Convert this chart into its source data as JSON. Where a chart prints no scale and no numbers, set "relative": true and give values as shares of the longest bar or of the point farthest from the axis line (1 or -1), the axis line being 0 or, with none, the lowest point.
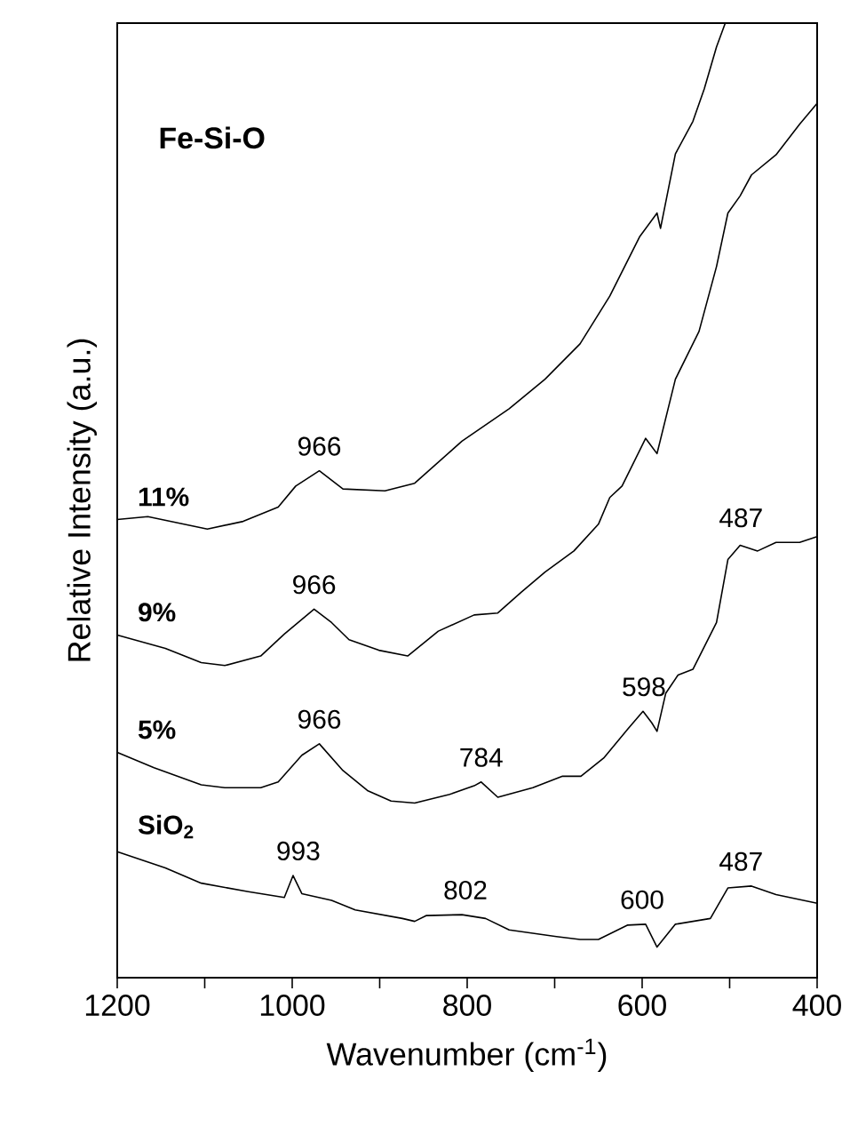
{
  "chart_data": {
    "type": "line",
    "title": "Fe-Si-O",
    "xlabel": "Wavenumber (cm$^{-1}$)",
    "ylabel": "Relative Intensity (a.u.)",
    "relative": true,
    "legend": false,
    "tick_labels": "x",
    "xlim": [
      1200,
      400
    ],
    "xticks": [
      1200,
      {
        "value": 1100,
        "label": null
      },
      1000,
      {
        "value": 900,
        "label": null
      },
      800,
      {
        "value": 700,
        "label": null
      },
      600,
      {
        "value": 500,
        "label": null
      },
      400
    ],
    "series": [
      {
        "name": "11%",
        "color": "#000000",
        "x": [
          1200,
          1165,
          1097,
          1056,
          1016,
          996,
          969,
          942,
          894,
          860,
          806,
          752,
          711,
          671,
          637,
          603,
          583,
          579,
          562,
          542,
          529,
          515,
          505
        ],
        "values": [
          0.48,
          0.483,
          0.47,
          0.478,
          0.493,
          0.515,
          0.531,
          0.512,
          0.51,
          0.518,
          0.562,
          0.596,
          0.627,
          0.664,
          0.714,
          0.776,
          0.801,
          0.785,
          0.863,
          0.897,
          0.931,
          0.975,
          1.0
        ]
      },
      {
        "name": "9%",
        "color": "#000000",
        "x": [
          1200,
          1145,
          1104,
          1077,
          1036,
          1009,
          975,
          955,
          935,
          901,
          868,
          833,
          792,
          765,
          738,
          711,
          678,
          650,
          637,
          623,
          596,
          583,
          562,
          535,
          515,
          502,
          488,
          475,
          447,
          420,
          400
        ],
        "values": [
          0.359,
          0.345,
          0.33,
          0.327,
          0.337,
          0.36,
          0.386,
          0.372,
          0.354,
          0.343,
          0.337,
          0.363,
          0.38,
          0.382,
          0.404,
          0.425,
          0.447,
          0.475,
          0.503,
          0.515,
          0.565,
          0.549,
          0.627,
          0.677,
          0.745,
          0.801,
          0.819,
          0.841,
          0.862,
          0.894,
          0.916
        ]
      },
      {
        "name": "5%",
        "color": "#000000",
        "x": [
          1200,
          1158,
          1104,
          1077,
          1036,
          1016,
          989,
          969,
          942,
          914,
          887,
          860,
          820,
          792,
          784,
          765,
          725,
          691,
          670,
          644,
          616,
          599,
          589,
          583,
          573,
          559,
          542,
          515,
          502,
          488,
          468,
          447,
          420,
          400
        ],
        "values": [
          0.236,
          0.22,
          0.202,
          0.199,
          0.199,
          0.205,
          0.233,
          0.245,
          0.217,
          0.196,
          0.185,
          0.183,
          0.192,
          0.201,
          0.205,
          0.189,
          0.199,
          0.211,
          0.211,
          0.23,
          0.261,
          0.279,
          0.267,
          0.258,
          0.298,
          0.317,
          0.323,
          0.372,
          0.438,
          0.453,
          0.447,
          0.456,
          0.456,
          0.462
        ]
      },
      {
        "name": "SiO$_{2}$",
        "color": "#000000",
        "x": [
          1200,
          1145,
          1104,
          1050,
          1009,
          999,
          989,
          955,
          928,
          874,
          860,
          847,
          806,
          779,
          752,
          698,
          671,
          650,
          617,
          596,
          583,
          562,
          522,
          502,
          475,
          447,
          400
        ],
        "values": [
          0.132,
          0.115,
          0.099,
          0.09,
          0.084,
          0.107,
          0.088,
          0.081,
          0.071,
          0.062,
          0.059,
          0.065,
          0.066,
          0.062,
          0.05,
          0.043,
          0.04,
          0.04,
          0.055,
          0.056,
          0.032,
          0.056,
          0.062,
          0.094,
          0.096,
          0.087,
          0.078
        ]
      }
    ],
    "annotations": [
      {
        "text": "966",
        "x": 969,
        "y": 0.531
      },
      {
        "text": "966",
        "x": 975,
        "y": 0.386
      },
      {
        "text": "966",
        "x": 969,
        "y": 0.245
      },
      {
        "text": "784",
        "x": 784,
        "y": 0.205
      },
      {
        "text": "598",
        "x": 598,
        "y": 0.279
      },
      {
        "text": "487",
        "x": 487,
        "y": 0.456
      },
      {
        "text": "993",
        "x": 993,
        "y": 0.107
      },
      {
        "text": "802",
        "x": 802,
        "y": 0.066
      },
      {
        "text": "600",
        "x": 600,
        "y": 0.056
      },
      {
        "text": "487",
        "x": 487,
        "y": 0.096
      }
    ]
  }
}
